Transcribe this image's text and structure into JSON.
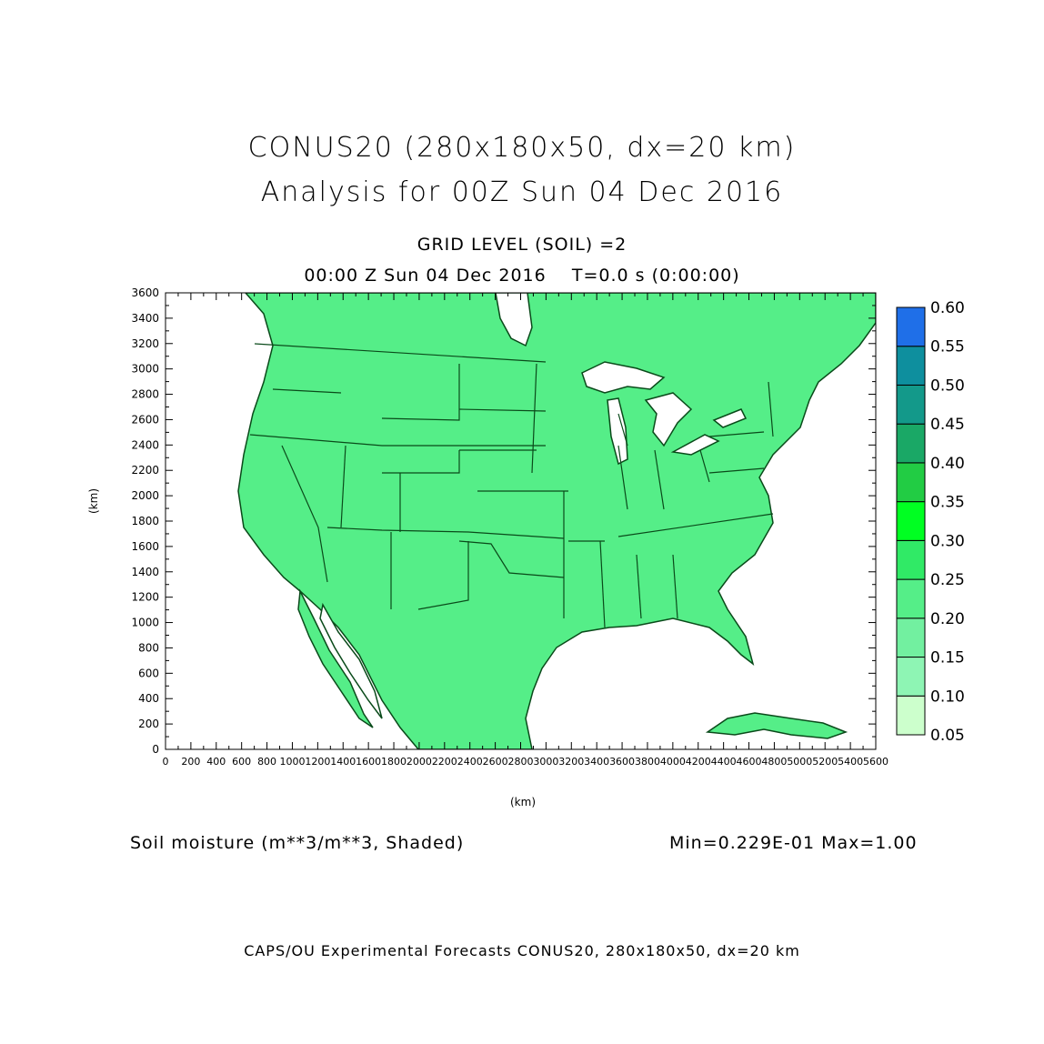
{
  "header": {
    "title_line1": "CONUS20 (280x180x50, dx=20 km)",
    "title_line2": "Analysis for 00Z Sun 04 Dec 2016",
    "level": "GRID LEVEL (SOIL) =2",
    "time": "00:00 Z Sun 04 Dec 2016    T=0.0 s (0:00:00)"
  },
  "axes": {
    "x_label": "(km)",
    "y_label": "(km)",
    "x_ticks": [
      "0",
      "200",
      "400",
      "600",
      "800",
      "1000",
      "1200",
      "1400",
      "1600",
      "1800",
      "2000",
      "2200",
      "2400",
      "2600",
      "2800",
      "3000",
      "3200",
      "3400",
      "3600",
      "3800",
      "4000",
      "4200",
      "4400",
      "4600",
      "4800",
      "5000",
      "5200",
      "5400",
      "5600"
    ],
    "y_ticks": [
      "0",
      "200",
      "400",
      "600",
      "800",
      "1000",
      "1200",
      "1400",
      "1600",
      "1800",
      "2000",
      "2200",
      "2400",
      "2600",
      "2800",
      "3000",
      "3200",
      "3400",
      "3600"
    ]
  },
  "colorbar": {
    "levels": [
      "0.05",
      "0.10",
      "0.15",
      "0.20",
      "0.25",
      "0.30",
      "0.35",
      "0.40",
      "0.45",
      "0.50",
      "0.55",
      "0.60"
    ],
    "colors": [
      "#ccffcc",
      "#a8f5c4",
      "#8ef5b4",
      "#72f0a0",
      "#55ee88",
      "#30ea66",
      "#00ff22",
      "#22cc44",
      "#1aa866",
      "#13998a",
      "#0e8f9e",
      "#1f6fe8"
    ]
  },
  "footer": {
    "variable": "Soil moisture (m**3/m**3, Shaded)",
    "minmax": "Min=0.229E-01 Max=1.00",
    "credit": "CAPS/OU Experimental Forecasts  CONUS20, 280x180x50, dx=20 km"
  }
}
